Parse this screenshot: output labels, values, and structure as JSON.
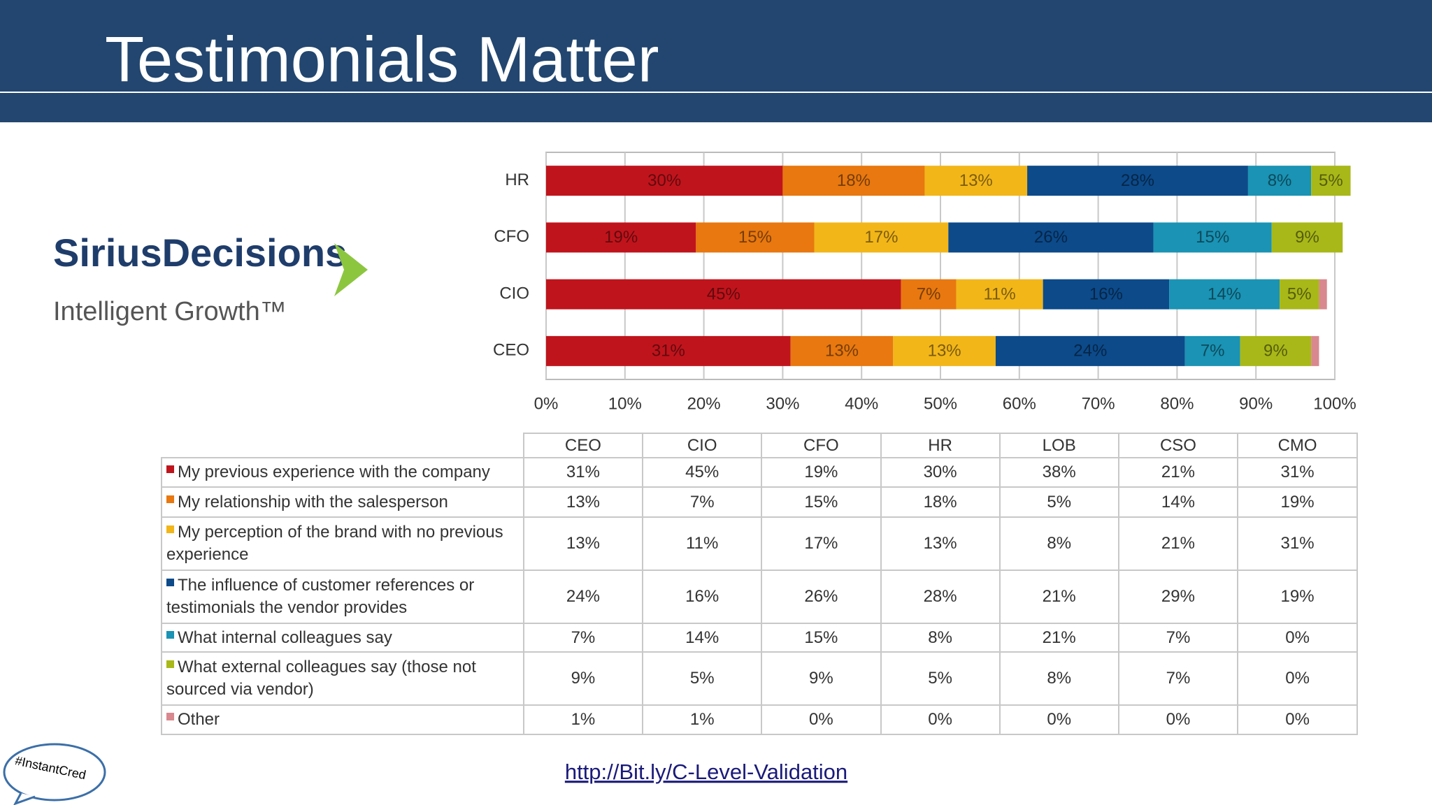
{
  "header": {
    "title": "Testimonials Matter"
  },
  "logo": {
    "name": "SiriusDecisions",
    "tagline": "Intelligent Growth™"
  },
  "chart_data": {
    "type": "stacked-bar-horizontal",
    "categories": [
      "HR",
      "CFO",
      "CIO",
      "CEO"
    ],
    "series": [
      {
        "name": "My previous experience with the company",
        "color": "#c0141c",
        "values": [
          30,
          19,
          45,
          31
        ],
        "value_labels": [
          "30%",
          "19%",
          "45%",
          "31%"
        ]
      },
      {
        "name": "My relationship with the salesperson",
        "color": "#e8780f",
        "values": [
          18,
          15,
          7,
          13
        ],
        "value_labels": [
          "18%",
          "15%",
          "7%",
          "13%"
        ]
      },
      {
        "name": "My perception of the brand with no previous experience",
        "color": "#f2b619",
        "values": [
          13,
          17,
          11,
          13
        ],
        "value_labels": [
          "13%",
          "17%",
          "11%",
          "13%"
        ]
      },
      {
        "name": "The influence of customer references or testimonials the vendor provides",
        "color": "#0c4a8a",
        "values": [
          28,
          26,
          16,
          24
        ],
        "value_labels": [
          "28%",
          "26%",
          "16%",
          "24%"
        ]
      },
      {
        "name": "What internal colleagues say",
        "color": "#1a93b4",
        "values": [
          8,
          15,
          14,
          7
        ],
        "value_labels": [
          "8%",
          "15%",
          "14%",
          "7%"
        ]
      },
      {
        "name": "What external colleagues say (those not sourced via vendor)",
        "color": "#a8b818",
        "values": [
          5,
          9,
          5,
          9
        ],
        "value_labels": [
          "5%",
          "9%",
          "5%",
          "9%"
        ]
      },
      {
        "name": "Other",
        "color": "#d9888f",
        "values": [
          0,
          0,
          1,
          1
        ]
      }
    ],
    "xlim": [
      0,
      100
    ],
    "xticks": [
      {
        "value": 0,
        "label": "0%"
      },
      {
        "value": 10,
        "label": "10%"
      },
      {
        "value": 20,
        "label": "20%"
      },
      {
        "value": 30,
        "label": "30%"
      },
      {
        "value": 40,
        "label": "40%"
      },
      {
        "value": 50,
        "label": "50%"
      },
      {
        "value": 60,
        "label": "60%"
      },
      {
        "value": 70,
        "label": "70%"
      },
      {
        "value": 80,
        "label": "80%"
      },
      {
        "value": 90,
        "label": "90%"
      },
      {
        "value": 100,
        "label": "100%"
      }
    ],
    "grid": true
  },
  "table": {
    "columns": [
      "CEO",
      "CIO",
      "CFO",
      "HR",
      "LOB",
      "CSO",
      "CMO"
    ],
    "rows": [
      [
        "31%",
        "45%",
        "19%",
        "30%",
        "38%",
        "21%",
        "31%"
      ],
      [
        "13%",
        "7%",
        "15%",
        "18%",
        "5%",
        "14%",
        "19%"
      ],
      [
        "13%",
        "11%",
        "17%",
        "13%",
        "8%",
        "21%",
        "31%"
      ],
      [
        "24%",
        "16%",
        "26%",
        "28%",
        "21%",
        "29%",
        "19%"
      ],
      [
        "7%",
        "14%",
        "15%",
        "8%",
        "21%",
        "7%",
        "0%"
      ],
      [
        "9%",
        "5%",
        "9%",
        "5%",
        "8%",
        "7%",
        "0%"
      ],
      [
        "1%",
        "1%",
        "0%",
        "0%",
        "0%",
        "0%",
        "0%"
      ]
    ]
  },
  "hashtag": "#InstantCred",
  "link": "http://Bit.ly/C-Level-Validation"
}
